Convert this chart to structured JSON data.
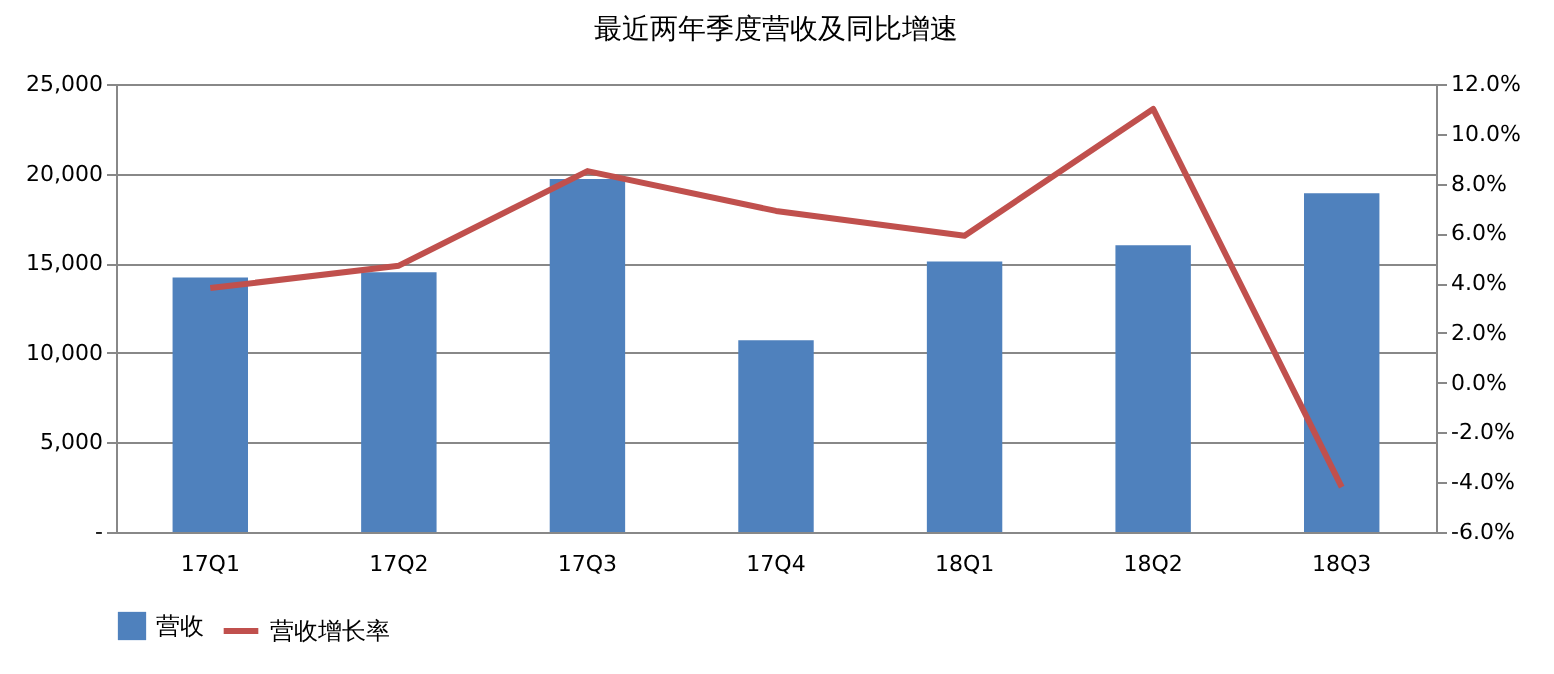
{
  "chart_data": {
    "type": "bar",
    "title": "最近两年季度营收及同比增速",
    "categories": [
      "17Q1",
      "17Q2",
      "17Q3",
      "17Q4",
      "18Q1",
      "18Q2",
      "18Q3"
    ],
    "series": [
      {
        "name": "营收",
        "color": "#4f81bd",
        "values": [
          14200,
          14500,
          19700,
          10700,
          15100,
          16000,
          18900
        ]
      },
      {
        "name": "营收增长率",
        "type": "line",
        "axis": "y2",
        "color": "#c0504d",
        "values": [
          3.8,
          4.7,
          8.5,
          6.9,
          5.9,
          11.0,
          -4.2
        ]
      }
    ],
    "ylim": [
      0,
      25000
    ],
    "yticks": [
      {
        "value": 0,
        "label": "-"
      },
      {
        "value": 5000,
        "label": "5,000"
      },
      {
        "value": 10000,
        "label": "10,000"
      },
      {
        "value": 15000,
        "label": "15,000"
      },
      {
        "value": 20000,
        "label": "20,000"
      },
      {
        "value": 25000,
        "label": "25,000"
      }
    ],
    "y2lim": [
      -6,
      12
    ],
    "y2ticks": [
      {
        "value": -6,
        "label": "-6.0%"
      },
      {
        "value": -4,
        "label": "-4.0%"
      },
      {
        "value": -2,
        "label": "-2.0%"
      },
      {
        "value": 0,
        "label": "0.0%"
      },
      {
        "value": 2,
        "label": "2.0%"
      },
      {
        "value": 4,
        "label": "4.0%"
      },
      {
        "value": 6,
        "label": "6.0%"
      },
      {
        "value": 8,
        "label": "8.0%"
      },
      {
        "value": 10,
        "label": "10.0%"
      },
      {
        "value": 12,
        "label": "12.0%"
      }
    ],
    "grid": "y",
    "legend": "bottom",
    "marker": "none",
    "line_style": "solid"
  }
}
